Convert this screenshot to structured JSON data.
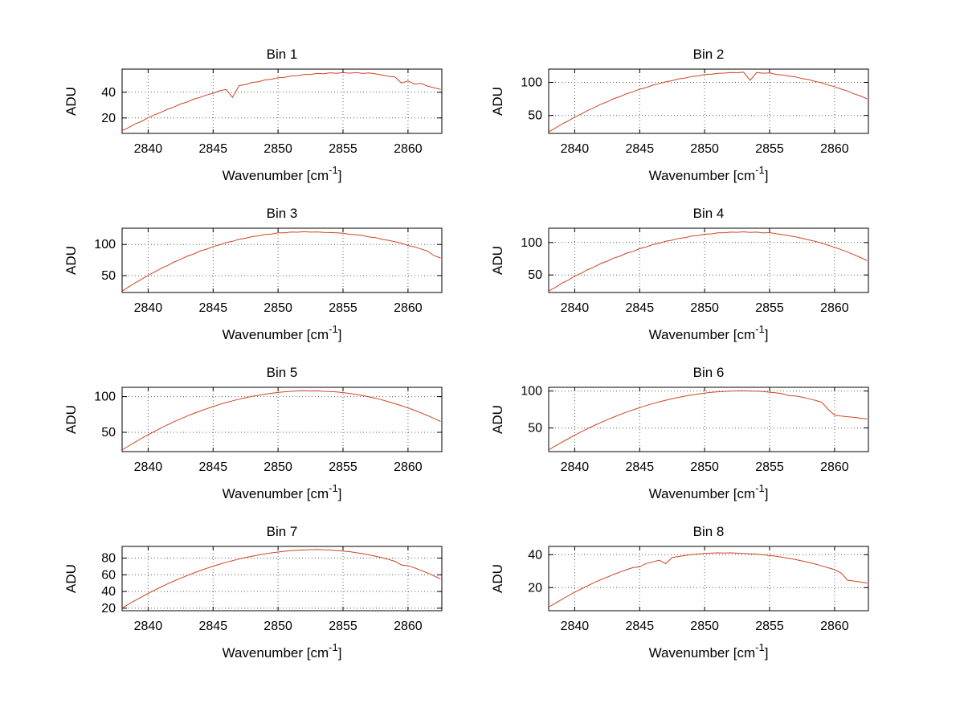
{
  "figure": {
    "background": "#ffffff"
  },
  "chart_data": {
    "type": "line",
    "common": {
      "ylabel": "ADU",
      "xlabel_prefix": "Wavenumber [cm",
      "xlabel_sup": "-1",
      "xlabel_suffix": "]",
      "xlim": [
        2838,
        2862.6
      ],
      "x_ticks": [
        2840,
        2845,
        2850,
        2855,
        2860
      ],
      "x_start": 2838.0,
      "x_step": 0.5,
      "line_color": "#cc4422",
      "grid_color": "#5a5a5a",
      "axis_color": "#000000",
      "legend": "none",
      "grid": "on"
    },
    "charts": [
      {
        "title": "Bin 1",
        "ylim": [
          8,
          58
        ],
        "y_ticks": [
          20,
          40
        ],
        "y": [
          10.2,
          12.5,
          15.3,
          17.4,
          20.1,
          22.5,
          24.4,
          26.8,
          28.5,
          30.9,
          32.4,
          34.6,
          36.0,
          37.9,
          39.2,
          41.1,
          42.2,
          36.0,
          45.2,
          46.0,
          47.6,
          48.2,
          49.6,
          50.1,
          51.3,
          51.6,
          52.7,
          52.9,
          53.8,
          53.9,
          54.6,
          54.3,
          55.1,
          54.7,
          55.3,
          54.8,
          55.4,
          54.6,
          55.0,
          54.3,
          53.4,
          52.4,
          51.8,
          47.2,
          48.8,
          46.3,
          46.9,
          44.8,
          43.5,
          42.3
        ]
      },
      {
        "title": "Bin 2",
        "ylim": [
          23,
          120
        ],
        "y_ticks": [
          50,
          100
        ],
        "y": [
          25.4,
          30.7,
          36.9,
          41.8,
          47.6,
          52.2,
          57.7,
          61.9,
          66.9,
          70.6,
          75.3,
          78.6,
          82.9,
          85.8,
          89.7,
          92.2,
          95.7,
          97.9,
          100.9,
          102.6,
          105.3,
          106.6,
          108.9,
          109.8,
          111.7,
          112.2,
          113.7,
          113.9,
          114.8,
          114.6,
          115.3,
          103.0,
          114.9,
          113.8,
          114.2,
          112.0,
          111.3,
          109.3,
          108.2,
          105.7,
          104.2,
          101.3,
          99.4,
          96.0,
          93.6,
          89.8,
          86.9,
          82.7,
          79.4,
          75.2
        ]
      },
      {
        "title": "Bin 3",
        "ylim": [
          23,
          126
        ],
        "y_ticks": [
          50,
          100
        ],
        "y": [
          25.2,
          31.9,
          38.4,
          44.1,
          50.6,
          55.7,
          61.6,
          66.3,
          71.9,
          76.0,
          81.1,
          84.7,
          89.4,
          92.4,
          96.6,
          99.2,
          102.9,
          105.0,
          108.3,
          109.9,
          112.6,
          113.8,
          116.1,
          116.7,
          118.5,
          118.6,
          119.8,
          119.6,
          120.4,
          119.7,
          120.1,
          119.3,
          119.0,
          118.7,
          117.9,
          116.2,
          115.6,
          114.4,
          112.0,
          110.9,
          108.1,
          106.6,
          104.3,
          101.9,
          98.2,
          96.1,
          92.8,
          89.3,
          82.1,
          78.3
        ]
      },
      {
        "title": "Bin 4",
        "ylim": [
          23,
          122
        ],
        "y_ticks": [
          50,
          100
        ],
        "y": [
          25.3,
          30.6,
          37.1,
          41.9,
          48.2,
          52.4,
          58.1,
          62.2,
          67.6,
          71.1,
          75.9,
          79.2,
          83.6,
          86.4,
          90.6,
          93.0,
          96.7,
          98.6,
          101.9,
          103.5,
          106.3,
          107.5,
          109.9,
          110.7,
          112.8,
          113.2,
          114.8,
          114.9,
          115.9,
          115.7,
          116.4,
          115.6,
          115.9,
          114.7,
          115.2,
          113.4,
          112.1,
          110.4,
          108.7,
          106.4,
          104.1,
          101.8,
          98.9,
          95.9,
          92.5,
          89.0,
          85.2,
          81.1,
          76.8,
          72.1
        ]
      },
      {
        "title": "Bin 5",
        "ylim": [
          23,
          113
        ],
        "y_ticks": [
          50,
          100
        ],
        "y": [
          25.2,
          30.9,
          36.3,
          41.6,
          46.6,
          51.4,
          56.1,
          60.5,
          64.8,
          68.8,
          72.7,
          76.3,
          79.8,
          83.0,
          86.1,
          89.0,
          91.6,
          94.1,
          96.4,
          98.4,
          100.3,
          101.9,
          103.4,
          104.7,
          105.8,
          106.7,
          107.4,
          107.9,
          108.2,
          107.8,
          108.1,
          107.4,
          107.2,
          106.6,
          105.6,
          104.4,
          103.0,
          101.4,
          99.6,
          97.6,
          95.3,
          92.8,
          90.1,
          87.2,
          84.1,
          80.8,
          77.2,
          73.5,
          69.5,
          65.2
        ]
      },
      {
        "title": "Bin 6",
        "ylim": [
          18,
          105
        ],
        "y_ticks": [
          50,
          100
        ],
        "y": [
          20.3,
          25.5,
          30.6,
          35.4,
          40.2,
          44.7,
          49.1,
          53.3,
          57.3,
          61.1,
          64.7,
          68.2,
          71.5,
          74.6,
          77.5,
          80.3,
          82.9,
          85.3,
          87.5,
          89.5,
          91.4,
          93.1,
          94.6,
          95.9,
          97.1,
          98.1,
          98.9,
          99.5,
          99.9,
          100.2,
          100.4,
          99.8,
          99.9,
          99.3,
          98.4,
          97.5,
          96.3,
          93.6,
          93.3,
          91.6,
          89.6,
          87.4,
          85.0,
          75.2,
          67.4,
          66.1,
          65.2,
          64.3,
          63.1,
          62.2
        ]
      },
      {
        "title": "Bin 7",
        "ylim": [
          17,
          94
        ],
        "y_ticks": [
          20,
          40,
          60,
          80
        ],
        "y": [
          20.2,
          24.8,
          29.3,
          33.5,
          37.7,
          41.6,
          45.4,
          49.1,
          52.6,
          55.9,
          59.1,
          62.1,
          65.0,
          67.7,
          70.3,
          72.7,
          74.9,
          77.0,
          78.9,
          80.7,
          82.3,
          83.8,
          85.1,
          86.3,
          87.3,
          88.2,
          88.9,
          89.4,
          89.8,
          90.1,
          90.3,
          89.9,
          89.7,
          89.0,
          88.5,
          87.7,
          86.6,
          85.3,
          83.9,
          82.2,
          80.4,
          78.4,
          76.1,
          71.8,
          70.9,
          68.3,
          65.3,
          62.1,
          58.7,
          55.1
        ]
      },
      {
        "title": "Bin 8",
        "ylim": [
          6,
          45
        ],
        "y_ticks": [
          20,
          40
        ],
        "y": [
          8.2,
          10.5,
          12.8,
          15.0,
          17.2,
          19.2,
          21.1,
          23.0,
          24.8,
          26.4,
          28.0,
          29.5,
          30.9,
          32.2,
          32.6,
          34.6,
          35.6,
          36.6,
          34.5,
          38.2,
          38.9,
          39.5,
          40.0,
          40.4,
          40.7,
          40.9,
          41.1,
          41.0,
          41.1,
          40.9,
          40.7,
          40.5,
          40.3,
          39.9,
          39.5,
          39.0,
          38.4,
          37.7,
          37.0,
          36.2,
          35.3,
          34.3,
          33.2,
          32.1,
          30.9,
          28.9,
          24.5,
          24.0,
          23.4,
          22.8
        ]
      }
    ]
  }
}
